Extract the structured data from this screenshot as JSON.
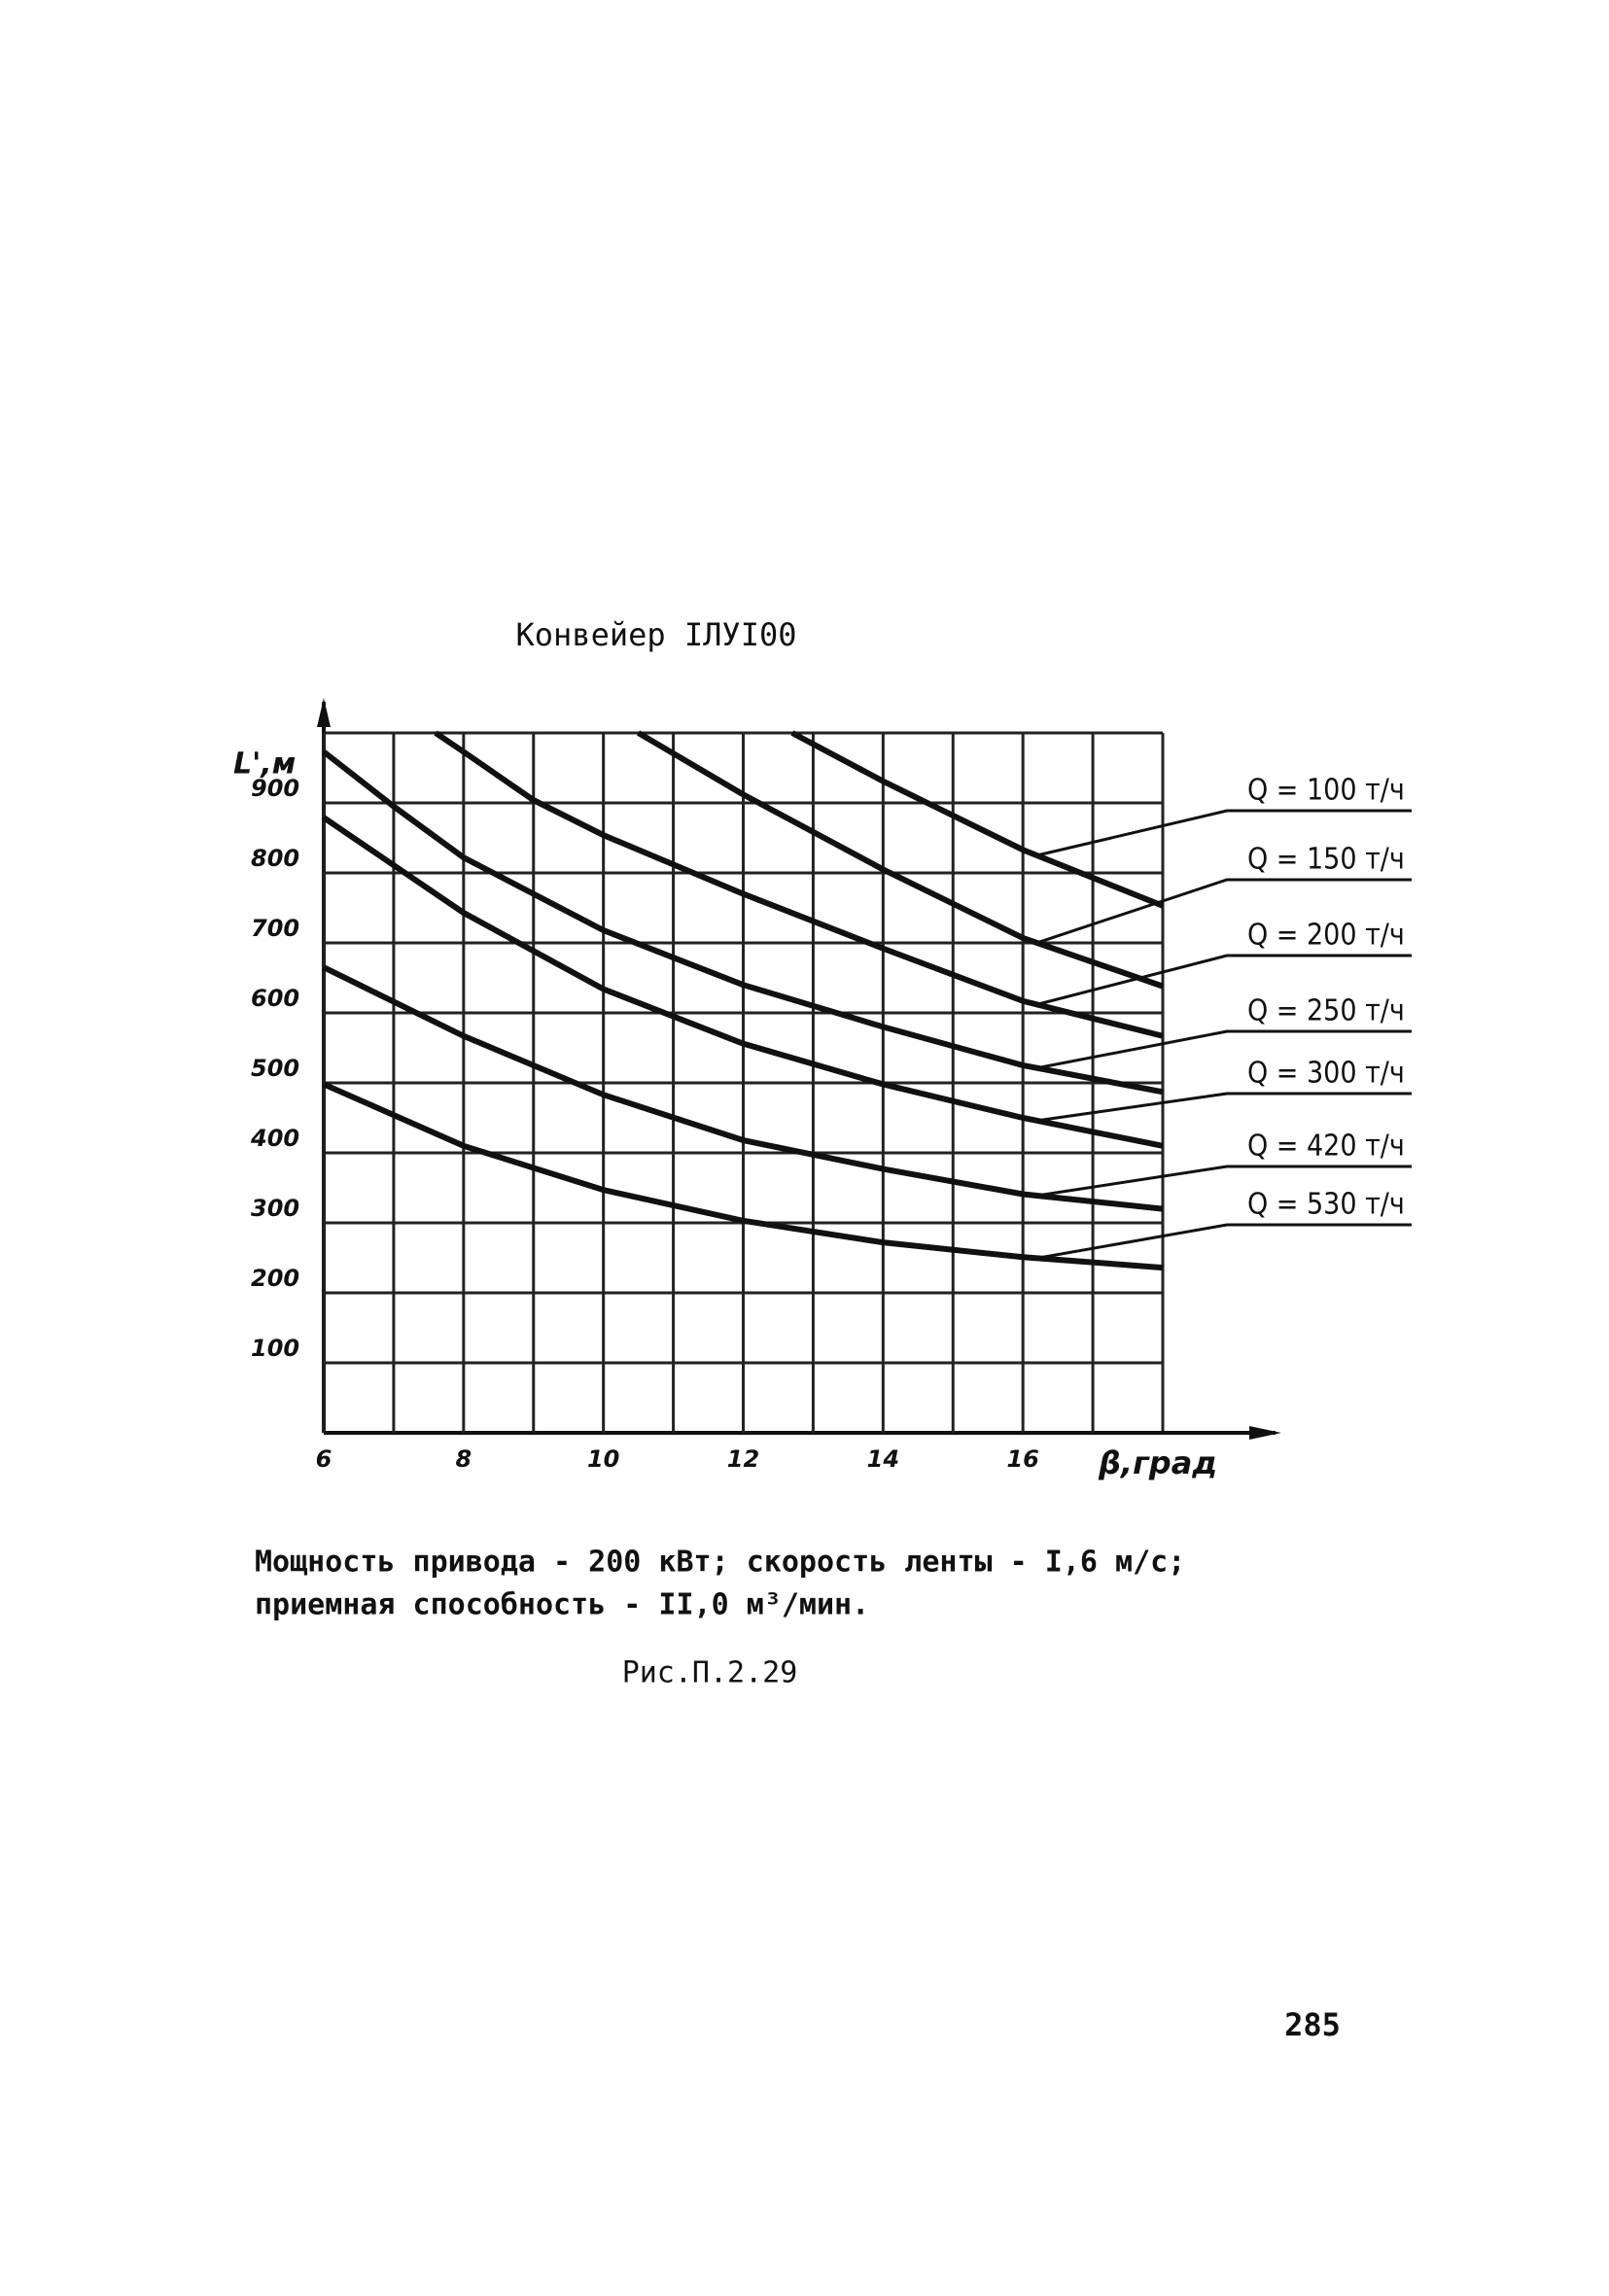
{
  "chart_data": {
    "type": "line",
    "title": "Конвейер IЛУI00",
    "ylabel": "L',м",
    "xlabel": "β,град",
    "xlim": [
      6,
      18
    ],
    "ylim": [
      0,
      1000
    ],
    "xticks": [
      6,
      8,
      10,
      12,
      14,
      16
    ],
    "yticks": [
      100,
      200,
      300,
      400,
      500,
      600,
      700,
      800,
      900
    ],
    "x_minor_grid": [
      7,
      9,
      11,
      13,
      15,
      17
    ],
    "grid": true,
    "color": "#111111",
    "series": [
      {
        "name": "Q = 100 т/ч",
        "x": [
          12.7,
          14,
          16,
          18
        ],
        "values": [
          1000,
          931,
          833,
          753
        ]
      },
      {
        "name": "Q = 150 т/ч",
        "x": [
          10.5,
          12,
          14,
          16,
          18
        ],
        "values": [
          1000,
          912,
          805,
          707,
          638
        ]
      },
      {
        "name": "Q = 200 т/ч",
        "x": [
          7.6,
          8,
          9,
          10,
          12,
          14,
          16,
          18
        ],
        "values": [
          1000,
          973,
          904,
          854,
          770,
          692,
          617,
          567
        ]
      },
      {
        "name": "Q = 250 т/ч",
        "x": [
          6,
          7,
          8,
          10,
          12,
          14,
          16,
          18
        ],
        "values": [
          973,
          895,
          822,
          718,
          640,
          580,
          525,
          487
        ]
      },
      {
        "name": "Q = 300 т/ч",
        "x": [
          6,
          8,
          10,
          12,
          14,
          16,
          18
        ],
        "values": [
          879,
          743,
          634,
          556,
          498,
          450,
          410
        ]
      },
      {
        "name": "Q = 420 т/ч",
        "x": [
          6,
          8,
          10,
          12,
          14,
          16,
          18
        ],
        "values": [
          665,
          567,
          483,
          418,
          377,
          341,
          320
        ]
      },
      {
        "name": "Q = 530 т/ч",
        "x": [
          6,
          8,
          10,
          12,
          14,
          16,
          18
        ],
        "values": [
          498,
          410,
          347,
          303,
          272,
          251,
          236
        ]
      }
    ]
  },
  "notes": [
    "Мощность привода - 200 кВт; скорость ленты - I,6 м/с;",
    "приемная способность - II,0 м³/мин."
  ],
  "caption": "Рис.П.2.29",
  "page_number": "285"
}
